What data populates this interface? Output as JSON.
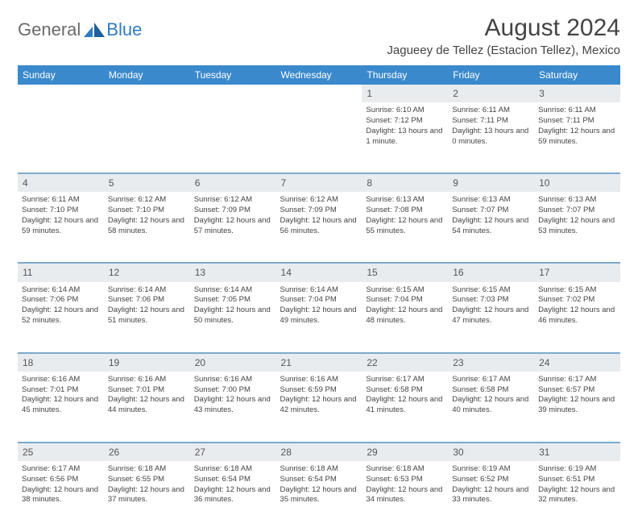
{
  "logo": {
    "text_a": "General",
    "text_b": "Blue"
  },
  "title": "August 2024",
  "location": "Jagueey de Tellez (Estacion Tellez), Mexico",
  "colors": {
    "header_bg": "#3a89cc",
    "header_text": "#ffffff",
    "daynum_bg": "#e9ecef",
    "sep_border": "#7da9cc",
    "text": "#444444",
    "logo_gray": "#6b6b6b",
    "logo_blue": "#2f7bc4"
  },
  "day_headers": [
    "Sunday",
    "Monday",
    "Tuesday",
    "Wednesday",
    "Thursday",
    "Friday",
    "Saturday"
  ],
  "weeks": [
    [
      null,
      null,
      null,
      null,
      {
        "n": "1",
        "sr": "6:10 AM",
        "ss": "7:12 PM",
        "dl": "13 hours and 1 minute."
      },
      {
        "n": "2",
        "sr": "6:11 AM",
        "ss": "7:11 PM",
        "dl": "13 hours and 0 minutes."
      },
      {
        "n": "3",
        "sr": "6:11 AM",
        "ss": "7:11 PM",
        "dl": "12 hours and 59 minutes."
      }
    ],
    [
      {
        "n": "4",
        "sr": "6:11 AM",
        "ss": "7:10 PM",
        "dl": "12 hours and 59 minutes."
      },
      {
        "n": "5",
        "sr": "6:12 AM",
        "ss": "7:10 PM",
        "dl": "12 hours and 58 minutes."
      },
      {
        "n": "6",
        "sr": "6:12 AM",
        "ss": "7:09 PM",
        "dl": "12 hours and 57 minutes."
      },
      {
        "n": "7",
        "sr": "6:12 AM",
        "ss": "7:09 PM",
        "dl": "12 hours and 56 minutes."
      },
      {
        "n": "8",
        "sr": "6:13 AM",
        "ss": "7:08 PM",
        "dl": "12 hours and 55 minutes."
      },
      {
        "n": "9",
        "sr": "6:13 AM",
        "ss": "7:07 PM",
        "dl": "12 hours and 54 minutes."
      },
      {
        "n": "10",
        "sr": "6:13 AM",
        "ss": "7:07 PM",
        "dl": "12 hours and 53 minutes."
      }
    ],
    [
      {
        "n": "11",
        "sr": "6:14 AM",
        "ss": "7:06 PM",
        "dl": "12 hours and 52 minutes."
      },
      {
        "n": "12",
        "sr": "6:14 AM",
        "ss": "7:06 PM",
        "dl": "12 hours and 51 minutes."
      },
      {
        "n": "13",
        "sr": "6:14 AM",
        "ss": "7:05 PM",
        "dl": "12 hours and 50 minutes."
      },
      {
        "n": "14",
        "sr": "6:14 AM",
        "ss": "7:04 PM",
        "dl": "12 hours and 49 minutes."
      },
      {
        "n": "15",
        "sr": "6:15 AM",
        "ss": "7:04 PM",
        "dl": "12 hours and 48 minutes."
      },
      {
        "n": "16",
        "sr": "6:15 AM",
        "ss": "7:03 PM",
        "dl": "12 hours and 47 minutes."
      },
      {
        "n": "17",
        "sr": "6:15 AM",
        "ss": "7:02 PM",
        "dl": "12 hours and 46 minutes."
      }
    ],
    [
      {
        "n": "18",
        "sr": "6:16 AM",
        "ss": "7:01 PM",
        "dl": "12 hours and 45 minutes."
      },
      {
        "n": "19",
        "sr": "6:16 AM",
        "ss": "7:01 PM",
        "dl": "12 hours and 44 minutes."
      },
      {
        "n": "20",
        "sr": "6:16 AM",
        "ss": "7:00 PM",
        "dl": "12 hours and 43 minutes."
      },
      {
        "n": "21",
        "sr": "6:16 AM",
        "ss": "6:59 PM",
        "dl": "12 hours and 42 minutes."
      },
      {
        "n": "22",
        "sr": "6:17 AM",
        "ss": "6:58 PM",
        "dl": "12 hours and 41 minutes."
      },
      {
        "n": "23",
        "sr": "6:17 AM",
        "ss": "6:58 PM",
        "dl": "12 hours and 40 minutes."
      },
      {
        "n": "24",
        "sr": "6:17 AM",
        "ss": "6:57 PM",
        "dl": "12 hours and 39 minutes."
      }
    ],
    [
      {
        "n": "25",
        "sr": "6:17 AM",
        "ss": "6:56 PM",
        "dl": "12 hours and 38 minutes."
      },
      {
        "n": "26",
        "sr": "6:18 AM",
        "ss": "6:55 PM",
        "dl": "12 hours and 37 minutes."
      },
      {
        "n": "27",
        "sr": "6:18 AM",
        "ss": "6:54 PM",
        "dl": "12 hours and 36 minutes."
      },
      {
        "n": "28",
        "sr": "6:18 AM",
        "ss": "6:54 PM",
        "dl": "12 hours and 35 minutes."
      },
      {
        "n": "29",
        "sr": "6:18 AM",
        "ss": "6:53 PM",
        "dl": "12 hours and 34 minutes."
      },
      {
        "n": "30",
        "sr": "6:19 AM",
        "ss": "6:52 PM",
        "dl": "12 hours and 33 minutes."
      },
      {
        "n": "31",
        "sr": "6:19 AM",
        "ss": "6:51 PM",
        "dl": "12 hours and 32 minutes."
      }
    ]
  ],
  "labels": {
    "sunrise": "Sunrise: ",
    "sunset": "Sunset: ",
    "daylight": "Daylight: "
  }
}
